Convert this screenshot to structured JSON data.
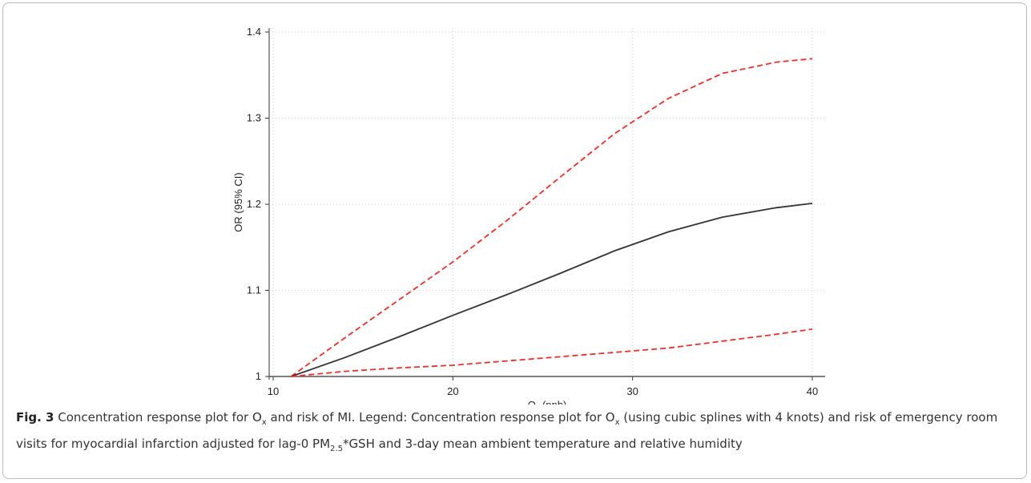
{
  "chart_data": {
    "type": "line",
    "y_label": "OR (95% CI)",
    "x_label": [
      {
        "text": "O",
        "sub": false
      },
      {
        "text": "x",
        "sub": true
      },
      {
        "text": " (ppb)",
        "sub": false
      }
    ],
    "x": [
      11,
      14,
      17,
      20,
      23,
      26,
      29,
      32,
      35,
      38,
      40
    ],
    "series": [
      {
        "color": "#e8302c",
        "dashed": true,
        "values": [
          1.0,
          1.045,
          1.089,
          1.133,
          1.181,
          1.232,
          1.282,
          1.323,
          1.352,
          1.365,
          1.369
        ]
      },
      {
        "color": "#333333",
        "dashed": false,
        "values": [
          1.0,
          1.022,
          1.046,
          1.071,
          1.095,
          1.12,
          1.146,
          1.168,
          1.185,
          1.196,
          1.201
        ]
      },
      {
        "color": "#e8302c",
        "dashed": true,
        "values": [
          1.0,
          1.006,
          1.01,
          1.013,
          1.018,
          1.023,
          1.028,
          1.033,
          1.041,
          1.049,
          1.055
        ]
      }
    ],
    "reference_line": 1,
    "xlim": [
      10,
      40
    ],
    "xticks": [
      10,
      20,
      30,
      40
    ],
    "ylim": [
      1,
      1.4
    ],
    "yticks": [
      1,
      1.1,
      1.2,
      1.3,
      1.4
    ],
    "grid": true
  },
  "caption": {
    "label": "Fig. 3",
    "parts": [
      {
        "text": " Concentration response plot for O",
        "sub": false
      },
      {
        "text": "x",
        "sub": true
      },
      {
        "text": " and risk of MI. Legend: Concentration response plot for O",
        "sub": false
      },
      {
        "text": "x",
        "sub": true
      },
      {
        "text": " (using cubic splines with 4 knots) and risk of emergency room visits for myocardial infarction adjusted for lag-0 PM",
        "sub": false
      },
      {
        "text": "2.5",
        "sub": true
      },
      {
        "text": "*GSH and 3-day mean ambient temperature and relative humidity",
        "sub": false
      }
    ]
  }
}
